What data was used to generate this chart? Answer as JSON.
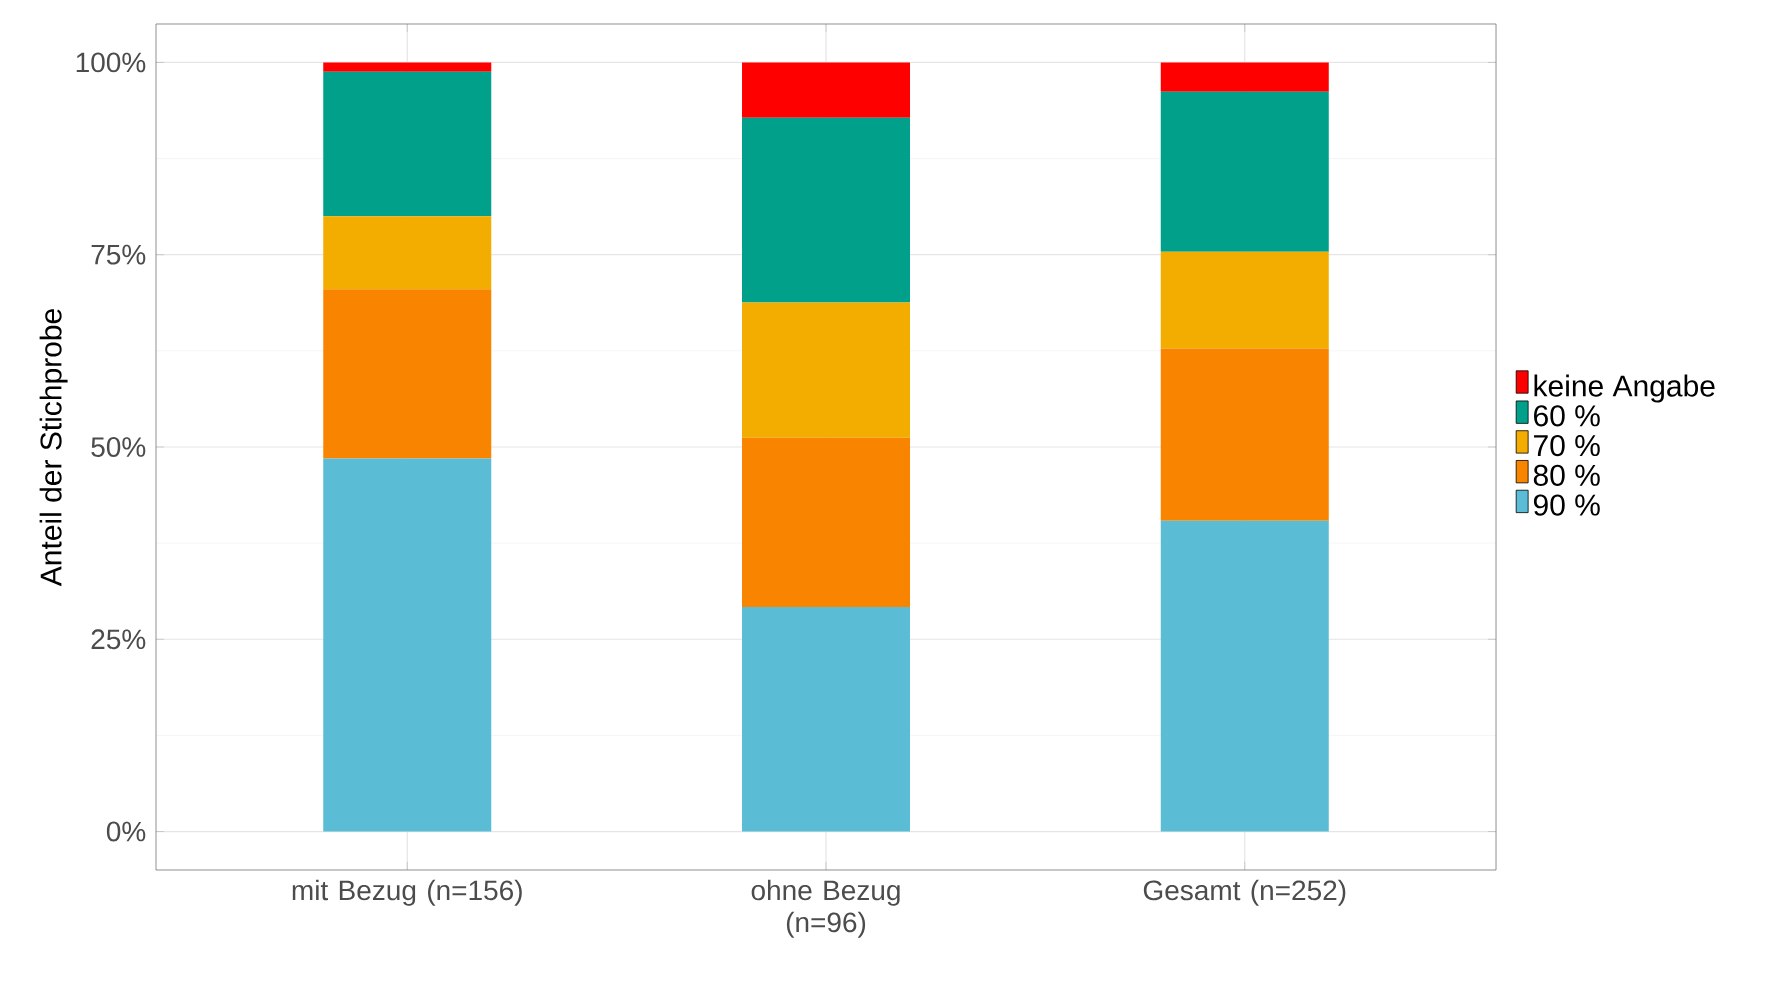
{
  "chart_data": {
    "type": "bar",
    "stacked": true,
    "ylabel": "Anteil der Stichprobe",
    "categories": [
      "mit Bezug (n=156)",
      "ohne Bezug (n=96)",
      "Gesamt (n=252)"
    ],
    "series": [
      {
        "name": "90 %",
        "color": "#5bbcd6",
        "values": [
          48.5,
          29.2,
          40.4
        ]
      },
      {
        "name": "80 %",
        "color": "#f98400",
        "values": [
          22.0,
          22.0,
          22.4
        ]
      },
      {
        "name": "70 %",
        "color": "#f2ad00",
        "values": [
          9.5,
          17.6,
          12.6
        ]
      },
      {
        "name": "60 %",
        "color": "#00a08a",
        "values": [
          18.8,
          24.0,
          20.8
        ]
      },
      {
        "name": "keine Angabe",
        "color": "#ff0000",
        "values": [
          1.2,
          7.2,
          3.8
        ]
      }
    ],
    "ylim": [
      -5,
      105
    ],
    "yticks": [
      {
        "value": 0,
        "label": "0%"
      },
      {
        "value": 25,
        "label": "25%"
      },
      {
        "value": 50,
        "label": "50%"
      },
      {
        "value": 75,
        "label": "75%"
      },
      {
        "value": 100,
        "label": "100%"
      }
    ],
    "grid": true,
    "legend": "right"
  }
}
